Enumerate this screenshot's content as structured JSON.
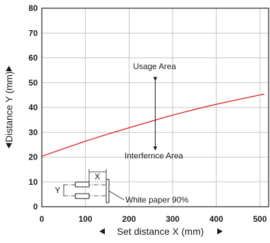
{
  "chart_data": {
    "type": "line",
    "title": "",
    "xlabel": "Set distance X (mm)",
    "ylabel": "Distance Y (mm)",
    "xlim": [
      0,
      520
    ],
    "ylim": [
      0,
      80
    ],
    "xticks": [
      0,
      100,
      200,
      300,
      400,
      500
    ],
    "yticks": [
      0,
      10,
      20,
      30,
      40,
      50,
      60,
      70,
      80
    ],
    "xtick_labels": [
      "0",
      "100",
      "200",
      "300",
      "400",
      "500"
    ],
    "ytick_labels": [
      "0",
      "10",
      "20",
      "30",
      "40",
      "50",
      "60",
      "70",
      "80"
    ],
    "grid": true,
    "line_color": "#e0282e",
    "series": [
      {
        "x": [
          0,
          50,
          100,
          150,
          200,
          250,
          300,
          350,
          400,
          450,
          510
        ],
        "y": [
          20.3,
          23.4,
          26.4,
          29.2,
          31.8,
          34.4,
          36.9,
          39.2,
          41.3,
          43.2,
          45.4
        ]
      }
    ],
    "annotations": {
      "usage": "Usage Area",
      "interference": "Interfernce Area",
      "arrow_x": 260,
      "arrow_top_y": 51.5,
      "arrow_bottom_y": 23.5
    },
    "inset": {
      "x_label": "X",
      "y_label": "Y",
      "caption": "White paper 90%"
    }
  }
}
